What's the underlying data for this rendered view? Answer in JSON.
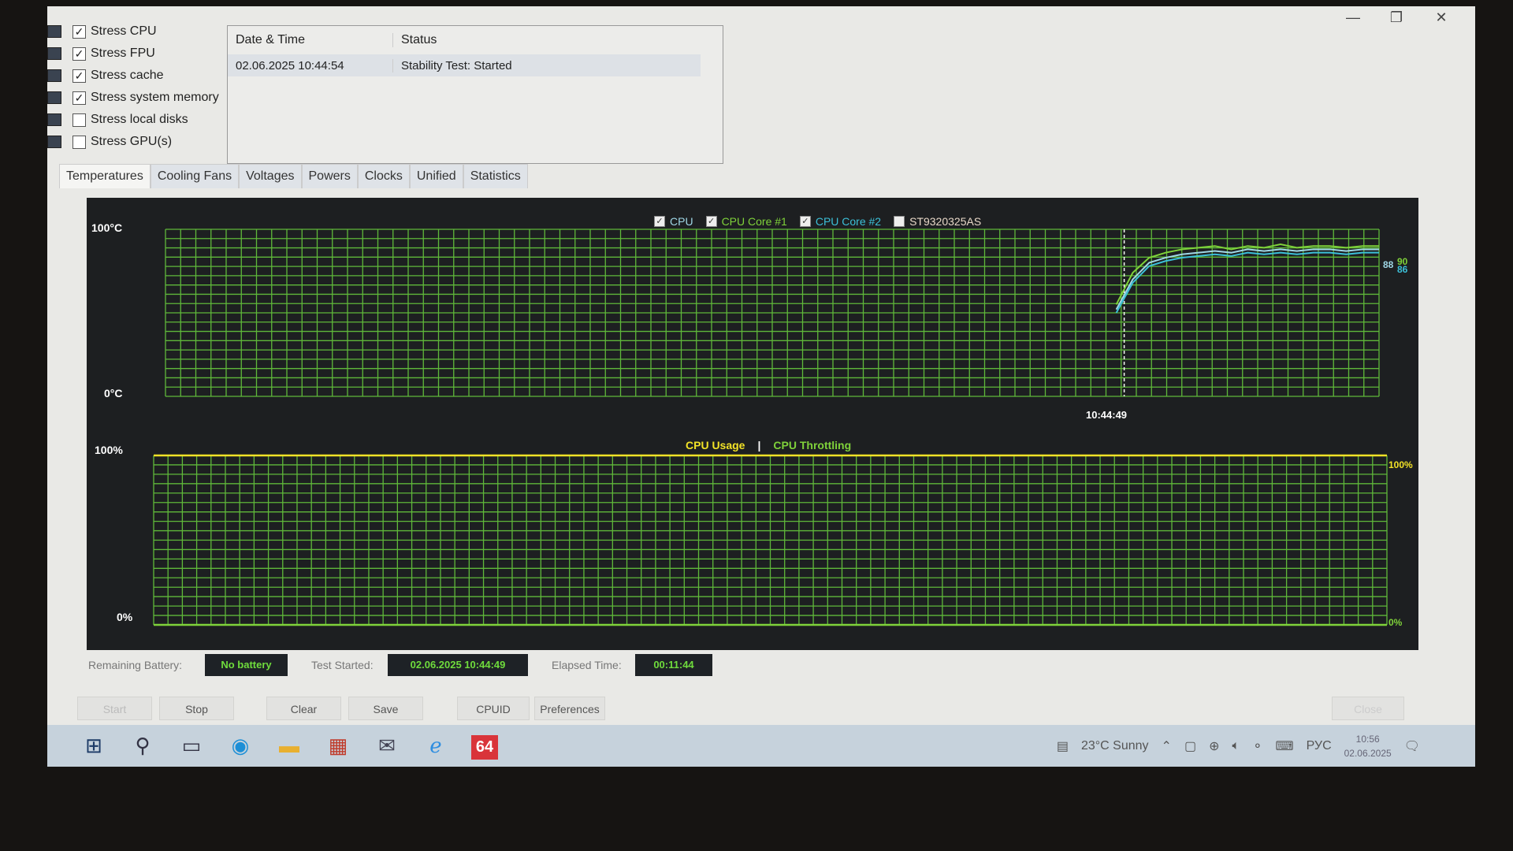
{
  "window": {
    "controls": [
      "—",
      "❐",
      "✕"
    ]
  },
  "stress_options": [
    {
      "label": "Stress CPU",
      "checked": true,
      "icon": "cpu-icon"
    },
    {
      "label": "Stress FPU",
      "checked": true,
      "icon": "fpu-icon"
    },
    {
      "label": "Stress cache",
      "checked": true,
      "icon": "cache-icon"
    },
    {
      "label": "Stress system memory",
      "checked": true,
      "icon": "memory-icon"
    },
    {
      "label": "Stress local disks",
      "checked": false,
      "icon": "disk-icon"
    },
    {
      "label": "Stress GPU(s)",
      "checked": false,
      "icon": "gpu-icon"
    }
  ],
  "log": {
    "columns": [
      "Date & Time",
      "Status"
    ],
    "rows": [
      [
        "02.06.2025 10:44:54",
        "Stability Test: Started"
      ]
    ]
  },
  "tabs": [
    "Temperatures",
    "Cooling Fans",
    "Voltages",
    "Powers",
    "Clocks",
    "Unified",
    "Statistics"
  ],
  "active_tab": "Temperatures",
  "chart_data": [
    {
      "type": "line",
      "ylim": [
        0,
        100
      ],
      "y_labels": [
        "100°C",
        "0°C"
      ],
      "x_marker": "10:44:49",
      "grid": true,
      "legend": [
        {
          "name": "CPU",
          "checked": true,
          "color": "#9fd7e6"
        },
        {
          "name": "CPU Core #1",
          "checked": true,
          "color": "#7fd23a"
        },
        {
          "name": "CPU Core #2",
          "checked": true,
          "color": "#3cc0d8"
        },
        {
          "name": "ST9320325AS",
          "checked": false,
          "color": "#e8d8c8"
        }
      ],
      "series": [
        {
          "name": "CPU",
          "values": [
            52,
            70,
            80,
            83,
            85,
            86,
            87,
            86,
            88,
            87,
            88,
            87,
            88,
            88,
            87,
            88,
            88
          ],
          "current": "88"
        },
        {
          "name": "CPU Core #1",
          "values": [
            55,
            74,
            83,
            86,
            88,
            89,
            90,
            88,
            90,
            89,
            91,
            89,
            90,
            90,
            89,
            90,
            90
          ],
          "current": "90"
        },
        {
          "name": "CPU Core #2",
          "values": [
            50,
            68,
            78,
            81,
            83,
            84,
            85,
            84,
            86,
            85,
            86,
            85,
            86,
            86,
            85,
            86,
            86
          ],
          "current": "86"
        }
      ]
    },
    {
      "type": "line",
      "ylim": [
        0,
        100
      ],
      "y_labels": [
        "100%",
        "0%"
      ],
      "grid": true,
      "legend": [
        {
          "name": "CPU Usage",
          "color": "#f2e227"
        },
        {
          "name": "CPU Throttling",
          "color": "#7fd23a"
        }
      ],
      "series": [
        {
          "name": "CPU Usage",
          "values": [
            100,
            100
          ],
          "current": "100%"
        },
        {
          "name": "CPU Throttling",
          "values": [
            0,
            0
          ],
          "current": "0%"
        }
      ]
    }
  ],
  "info": {
    "battery_label": "Remaining Battery:",
    "battery": "No battery",
    "started_label": "Test Started:",
    "started": "02.06.2025 10:44:49",
    "elapsed_label": "Elapsed Time:",
    "elapsed": "00:11:44"
  },
  "buttons": {
    "start": "Start",
    "stop": "Stop",
    "clear": "Clear",
    "save": "Save",
    "cpuid": "CPUID",
    "preferences": "Preferences",
    "close": "Close"
  },
  "taskbar": {
    "weather": "23°C  Sunny",
    "lang": "РУС",
    "time": "10:56",
    "date": "02.06.2025",
    "aida_badge": "64"
  }
}
